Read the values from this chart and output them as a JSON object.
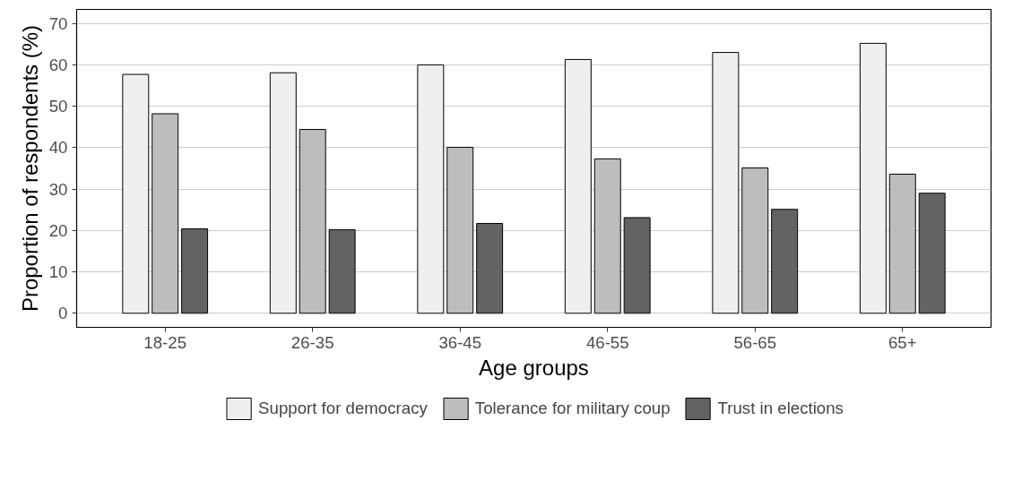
{
  "chart_data": {
    "type": "bar",
    "xlabel": "Age groups",
    "ylabel": "Proportion of respondents (%)",
    "categories": [
      "18-25",
      "26-35",
      "36-45",
      "46-55",
      "56-65",
      "65+"
    ],
    "series": [
      {
        "name": "Support for democracy",
        "color": "#efefef",
        "values": [
          57.7,
          58.1,
          60.0,
          61.3,
          63.0,
          65.2
        ]
      },
      {
        "name": "Tolerance for military coup",
        "color": "#bdbdbd",
        "values": [
          48.2,
          44.4,
          40.1,
          37.3,
          35.1,
          33.6
        ]
      },
      {
        "name": "Trust in elections",
        "color": "#636363",
        "values": [
          20.4,
          20.2,
          21.7,
          23.1,
          25.1,
          29.0
        ]
      }
    ],
    "ylim": [
      -3.4,
      73.4
    ],
    "yticks": [
      0,
      10,
      20,
      30,
      40,
      50,
      60,
      70
    ],
    "grid": "y",
    "legend": "bottom"
  }
}
